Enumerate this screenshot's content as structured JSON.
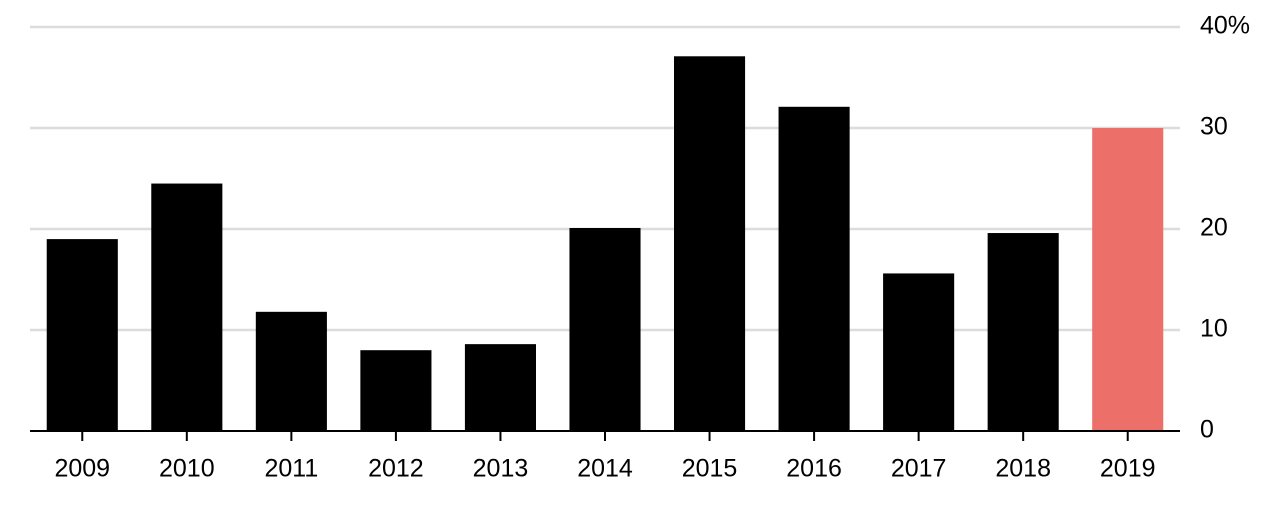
{
  "chart_data": {
    "type": "bar",
    "categories": [
      "2009",
      "2010",
      "2011",
      "2012",
      "2013",
      "2014",
      "2015",
      "2016",
      "2017",
      "2018",
      "2019"
    ],
    "values": [
      19.0,
      24.5,
      11.8,
      8.0,
      8.6,
      20.1,
      37.1,
      32.1,
      15.6,
      19.6,
      30.0
    ],
    "colors": [
      "#000000",
      "#000000",
      "#000000",
      "#000000",
      "#000000",
      "#000000",
      "#000000",
      "#000000",
      "#000000",
      "#000000",
      "#ed6f6a"
    ],
    "ylim": [
      0,
      40
    ],
    "yticks": [
      0,
      10,
      20,
      30,
      {
        "value": 40,
        "label": "40%"
      }
    ],
    "grid": true,
    "y_axis_side": "right"
  }
}
